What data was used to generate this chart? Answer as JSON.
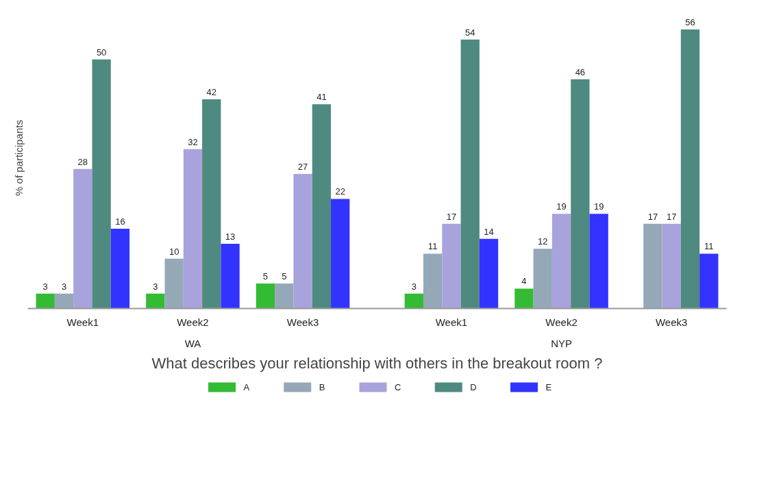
{
  "chart_data": {
    "type": "bar",
    "xlabel": "What describes your relationship with others in the breakout room ?",
    "ylabel": "% of participants",
    "categories": [
      "Week1",
      "Week2",
      "Week3",
      "Week1",
      "Week2",
      "Week3"
    ],
    "annotations": [
      "WA",
      "NYP"
    ],
    "series": [
      {
        "name": "A",
        "color": "#33bb33",
        "values": [
          3,
          3,
          5,
          3,
          4,
          null
        ]
      },
      {
        "name": "B",
        "color": "#94a8b8",
        "values": [
          3,
          10,
          5,
          11,
          12,
          17
        ]
      },
      {
        "name": "C",
        "color": "#a8a3dc",
        "values": [
          28,
          32,
          27,
          17,
          19,
          17
        ]
      },
      {
        "name": "D",
        "color": "#4f8a80",
        "values": [
          50,
          42,
          41,
          54,
          46,
          56
        ]
      },
      {
        "name": "E",
        "color": "#3333ff",
        "values": [
          16,
          13,
          22,
          14,
          19,
          11
        ]
      }
    ],
    "data_labels": true,
    "legend": "bottom",
    "grid": false
  }
}
